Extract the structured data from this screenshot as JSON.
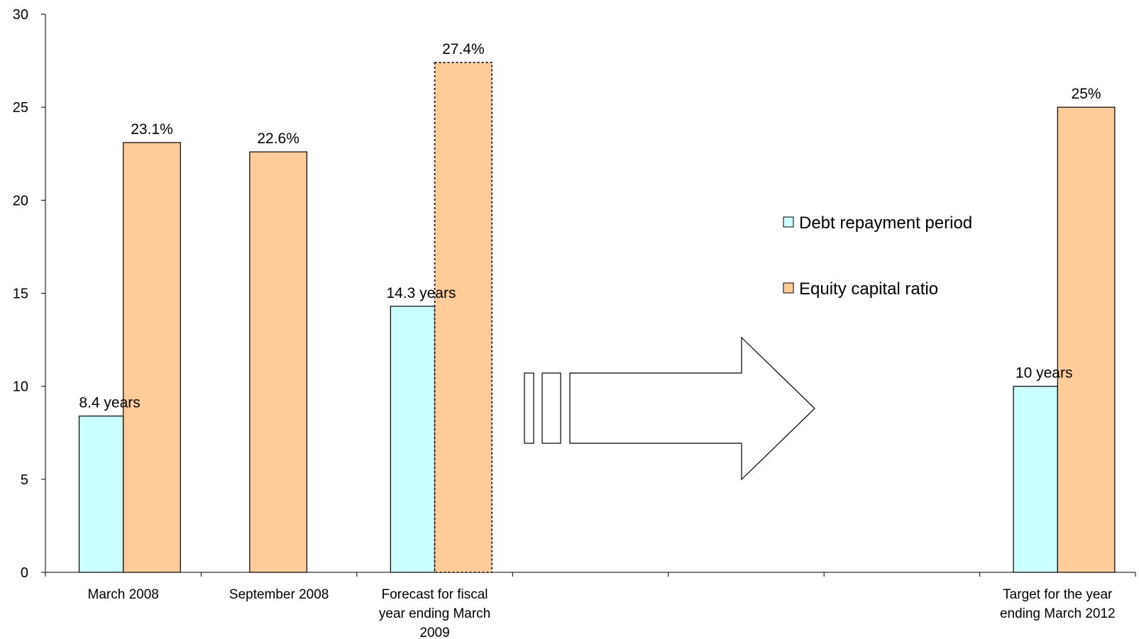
{
  "chart_data": {
    "type": "bar",
    "ylim": [
      0,
      30
    ],
    "y_ticks": [
      0,
      5,
      10,
      15,
      20,
      25,
      30
    ],
    "grid": false,
    "legend_position": "right",
    "categories": [
      [
        "March 2008"
      ],
      [
        "September 2008"
      ],
      [
        "Forecast for fiscal",
        "year ending March",
        "2009"
      ],
      [
        ""
      ],
      [
        ""
      ],
      [
        ""
      ],
      [
        "Target for the year",
        "ending March 2012"
      ]
    ],
    "series": [
      {
        "name": "Debt repayment period",
        "color": "#ccffff",
        "values": [
          8.4,
          null,
          14.3,
          null,
          null,
          null,
          10
        ],
        "labels": [
          "8.4 years",
          "",
          "14.3 years",
          "",
          "",
          "",
          "10 years"
        ]
      },
      {
        "name": "Equity capital ratio",
        "color": "#ffcc99",
        "values": [
          23.1,
          22.6,
          27.4,
          null,
          null,
          null,
          25
        ],
        "labels": [
          "23.1%",
          "22.6%",
          "27.4%",
          "",
          "",
          "",
          "25%"
        ],
        "forecast_index": 2
      }
    ],
    "annotations": [
      {
        "type": "arrow",
        "direction": "right",
        "icon": "right-arrow-icon"
      }
    ]
  }
}
